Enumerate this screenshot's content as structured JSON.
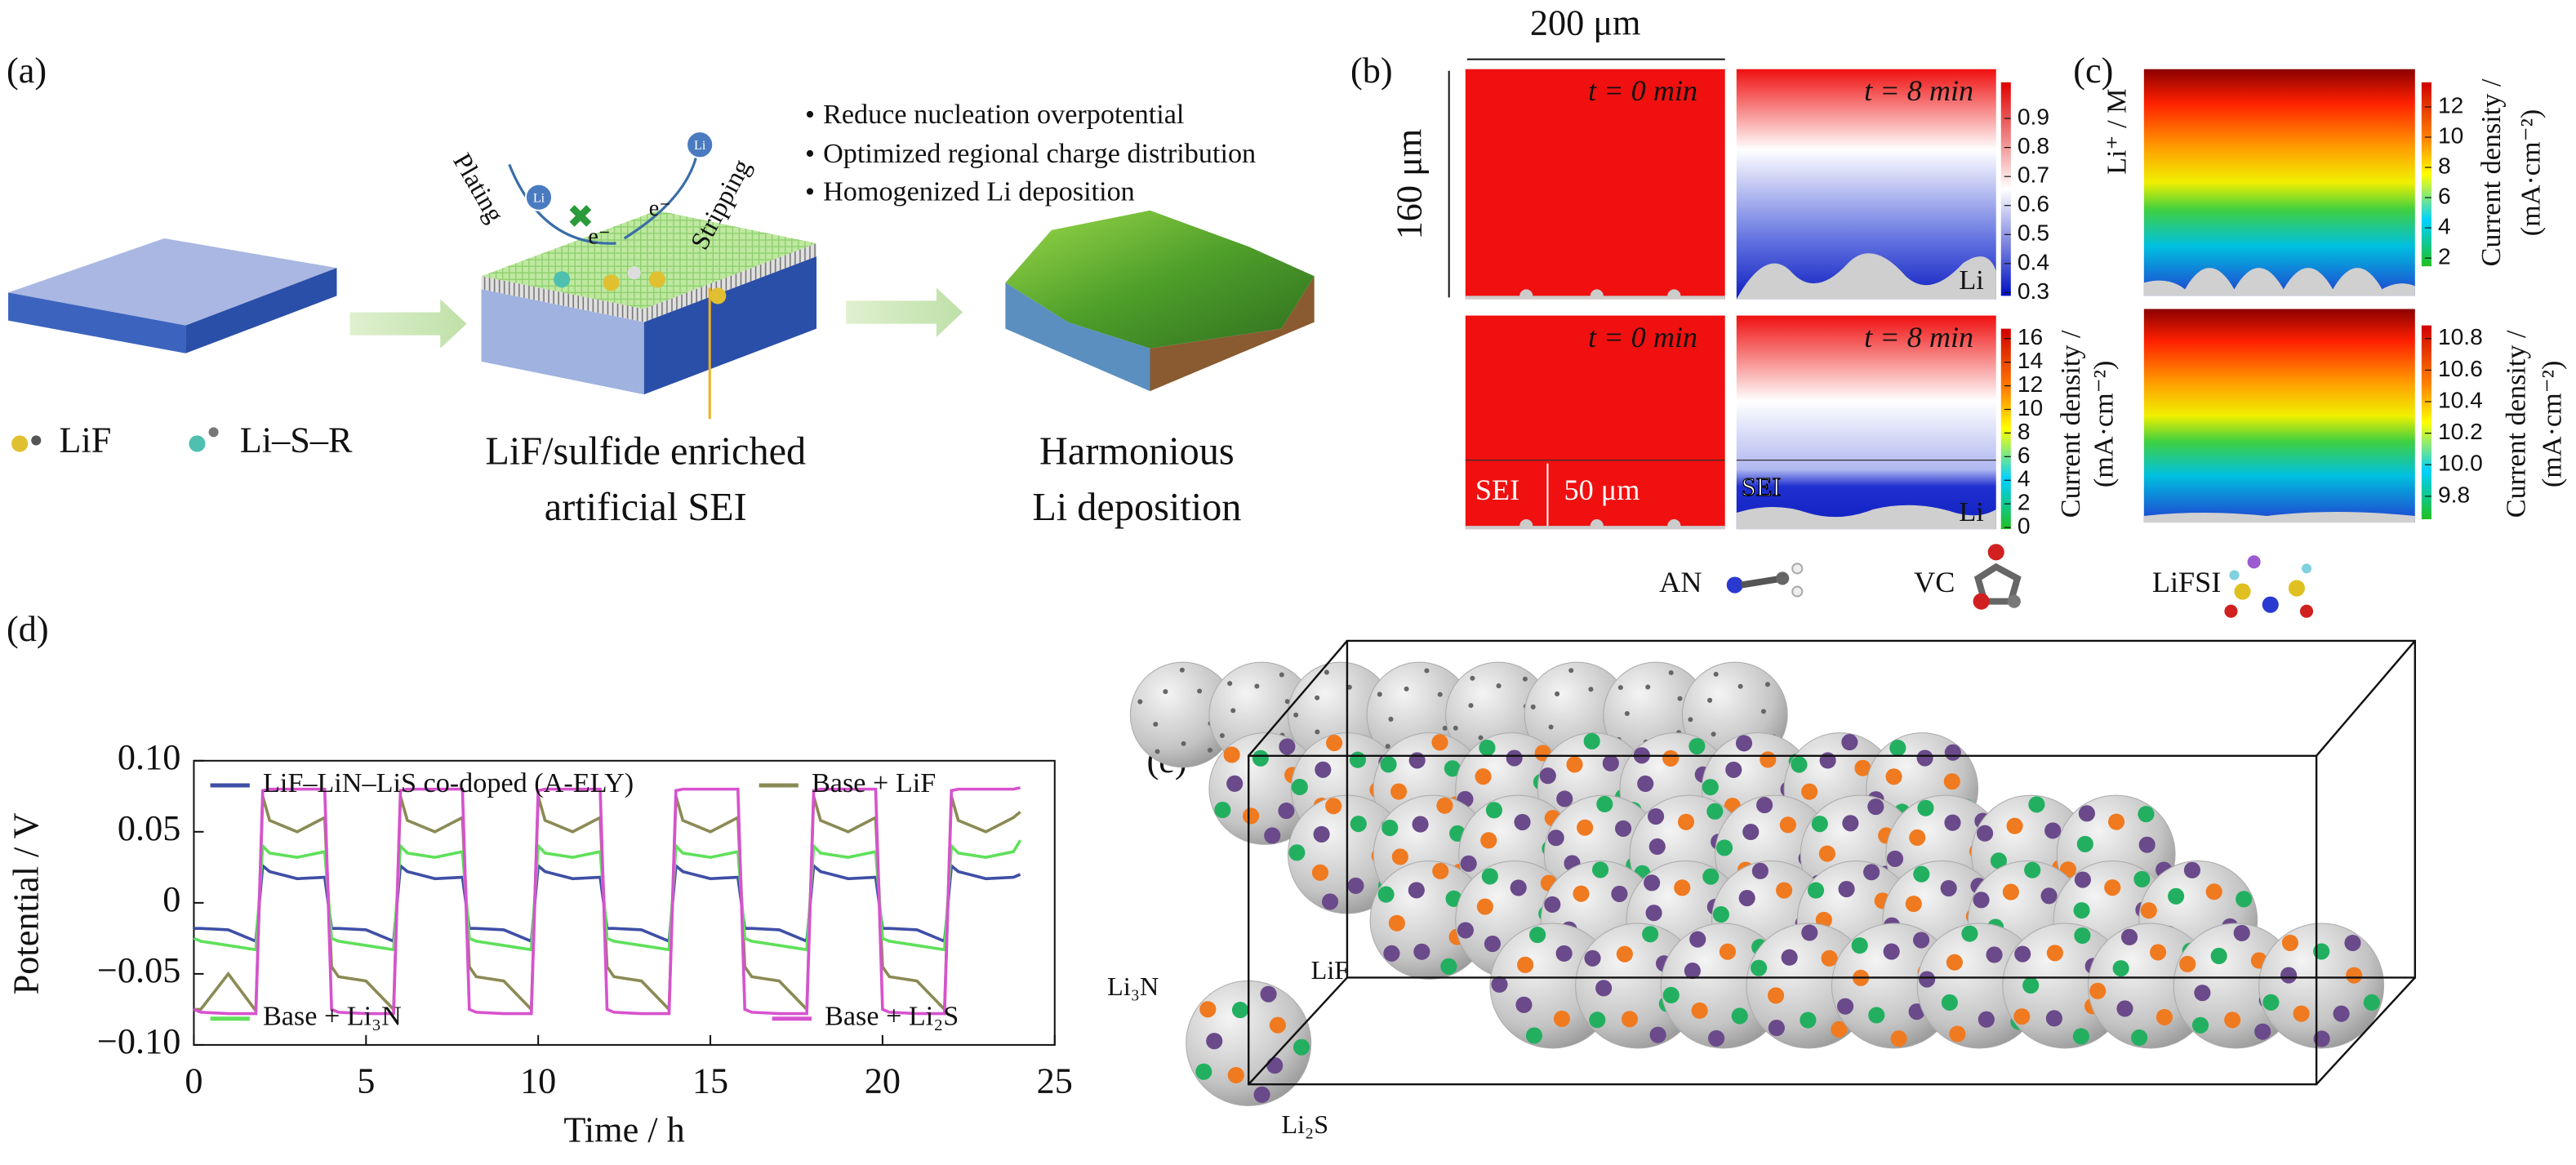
{
  "panel_a": {
    "label": "(a)",
    "bullets": [
      "Reduce nucleation overpotential",
      "Optimized regional charge distribution",
      "Homogenized Li deposition"
    ],
    "plating": "Plating",
    "stripping": "Stripping",
    "li_ion": "Li",
    "electron": "e⁻",
    "legend": [
      "LiF",
      "Li–S–R"
    ],
    "sei_caption": [
      "LiF/sulfide enriched",
      "artificial SEI"
    ],
    "deposition_caption": [
      "Harmonious",
      "Li deposition"
    ]
  },
  "panel_b": {
    "label": "(b)",
    "width": "200 μm",
    "height": "160 μm",
    "time_start": "t = 0 min",
    "time_end": "t = 8 min",
    "li": "Li",
    "sei": "SEI",
    "sei_thickness": "50 μm",
    "colorbar_top": [
      "0.9",
      "0.8",
      "0.7",
      "0.6",
      "0.5",
      "0.4",
      "0.3"
    ],
    "colorbar_bottom": [
      "16",
      "14",
      "12",
      "10",
      "8",
      "6",
      "4",
      "2",
      "0"
    ],
    "colorbar_label": [
      "Current density /",
      "(mA·cm⁻²)"
    ]
  },
  "panel_c": {
    "label": "(c)",
    "li_label": "Li⁺ / M",
    "colorbar_top": [
      "12",
      "10",
      "8",
      "6",
      "4",
      "2"
    ],
    "colorbar_bottom": [
      "10.8",
      "10.6",
      "10.4",
      "10.2",
      "10.0",
      "9.8"
    ],
    "colorbar_label": [
      "Current density /",
      "(mA·cm⁻²)"
    ]
  },
  "chart_data": {
    "type": "line",
    "label": "(d)",
    "x_label": "Time / h",
    "y_label": "Potential / V",
    "xlim": [
      0,
      25
    ],
    "xticks": [
      0,
      5,
      10,
      15,
      20,
      25
    ],
    "ylim": [
      -0.1,
      0.1
    ],
    "yticks": [
      {
        "value": -0.1,
        "label": "−0.10"
      },
      {
        "value": -0.05,
        "label": "−0.05"
      },
      0,
      {
        "value": 0.05,
        "label": "0.05"
      },
      {
        "value": 0.1,
        "label": "0.10"
      }
    ],
    "x": [
      0,
      0.2,
      1,
      1.8,
      2,
      2.2,
      3,
      3.8,
      4,
      4.2,
      5,
      5.8,
      6,
      6.2,
      7,
      7.8,
      8,
      8.2,
      9,
      9.8,
      10,
      10.2,
      11,
      11.8,
      12,
      12.2,
      13,
      13.8,
      14,
      14.2,
      15,
      15.8,
      16,
      16.2,
      17,
      17.8,
      18,
      18.2,
      19,
      19.8,
      20,
      20.2,
      21,
      21.8,
      22,
      22.2,
      23,
      23.8,
      24
    ],
    "series": [
      {
        "name": "LiF–LiN–LiS co-doped (A-ELY)",
        "color": "#3f4fa6",
        "values": [
          -0.018,
          -0.018,
          -0.019,
          -0.027,
          0.026,
          0.022,
          0.017,
          0.018,
          -0.018,
          -0.018,
          -0.019,
          -0.027,
          0.026,
          0.022,
          0.017,
          0.018,
          -0.018,
          -0.018,
          -0.019,
          -0.027,
          0.026,
          0.022,
          0.017,
          0.018,
          -0.018,
          -0.018,
          -0.019,
          -0.027,
          0.026,
          0.022,
          0.017,
          0.018,
          -0.018,
          -0.018,
          -0.019,
          -0.027,
          0.026,
          0.022,
          0.017,
          0.018,
          -0.018,
          -0.018,
          -0.019,
          -0.027,
          0.026,
          0.022,
          0.017,
          0.018,
          0.02
        ]
      },
      {
        "name": "Base + LiF",
        "color": "#8b8a55",
        "values": [
          -0.075,
          -0.075,
          -0.05,
          -0.076,
          0.075,
          0.058,
          0.05,
          0.06,
          -0.045,
          -0.052,
          -0.055,
          -0.075,
          0.075,
          0.058,
          0.05,
          0.06,
          -0.045,
          -0.052,
          -0.055,
          -0.075,
          0.075,
          0.058,
          0.05,
          0.06,
          -0.045,
          -0.052,
          -0.055,
          -0.075,
          0.075,
          0.058,
          0.05,
          0.06,
          -0.045,
          -0.052,
          -0.055,
          -0.075,
          0.075,
          0.058,
          0.05,
          0.06,
          -0.045,
          -0.052,
          -0.055,
          -0.075,
          0.075,
          0.058,
          0.05,
          0.06,
          0.064
        ]
      },
      {
        "name": "Base + Li₃N",
        "color": "#5fe05a",
        "values": [
          -0.025,
          -0.027,
          -0.03,
          -0.033,
          0.04,
          0.035,
          0.032,
          0.036,
          -0.025,
          -0.027,
          -0.03,
          -0.033,
          0.04,
          0.035,
          0.032,
          0.036,
          -0.025,
          -0.027,
          -0.03,
          -0.033,
          0.04,
          0.035,
          0.032,
          0.036,
          -0.025,
          -0.027,
          -0.03,
          -0.033,
          0.04,
          0.035,
          0.032,
          0.036,
          -0.025,
          -0.027,
          -0.03,
          -0.033,
          0.04,
          0.035,
          0.032,
          0.036,
          -0.025,
          -0.027,
          -0.03,
          -0.033,
          0.04,
          0.035,
          0.032,
          0.036,
          0.044
        ]
      },
      {
        "name": "Base + Li₂S",
        "color": "#d752cf",
        "values": [
          -0.075,
          -0.077,
          -0.078,
          -0.078,
          0.079,
          0.08,
          0.08,
          0.08,
          -0.075,
          -0.077,
          -0.078,
          -0.078,
          0.079,
          0.08,
          0.08,
          0.08,
          -0.075,
          -0.077,
          -0.078,
          -0.078,
          0.079,
          0.08,
          0.08,
          0.08,
          -0.075,
          -0.077,
          -0.078,
          -0.078,
          0.079,
          0.08,
          0.08,
          0.08,
          -0.075,
          -0.077,
          -0.078,
          -0.078,
          0.079,
          0.08,
          0.08,
          0.08,
          -0.075,
          -0.077,
          -0.078,
          -0.078,
          0.079,
          0.08,
          0.08,
          0.08,
          0.081
        ]
      }
    ]
  },
  "panel_e": {
    "label": "(e)",
    "molecules": [
      "AN",
      "VC",
      "LiFSI"
    ],
    "species": [
      "Li₃N",
      "LiF",
      "Li₂S"
    ]
  }
}
